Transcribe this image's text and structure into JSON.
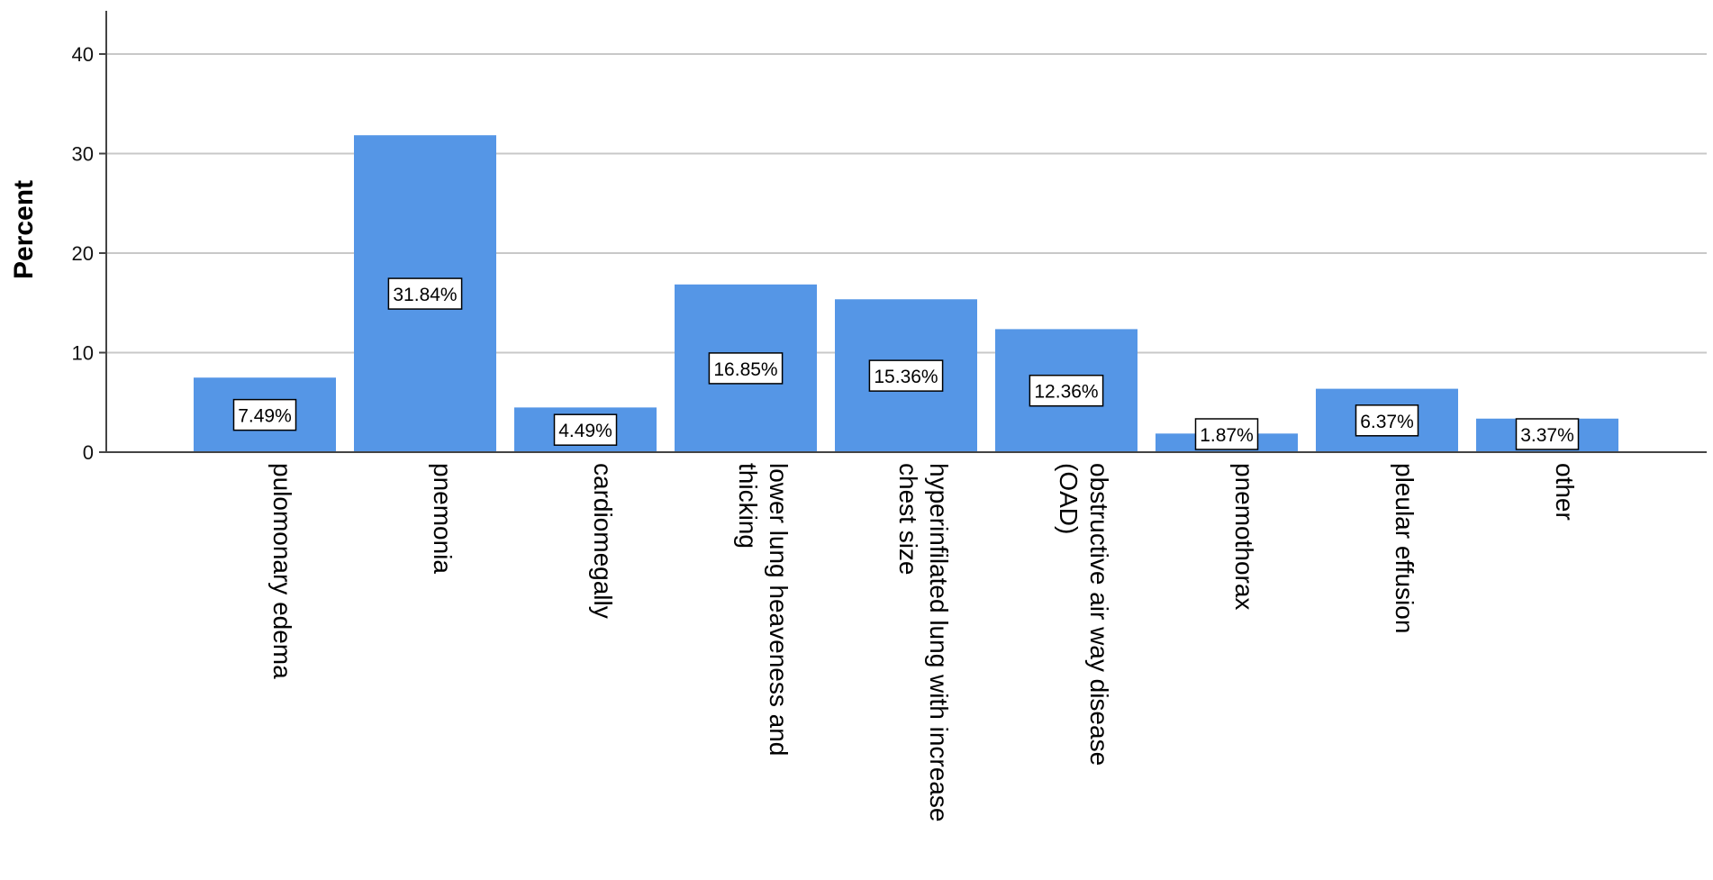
{
  "chart_data": {
    "type": "bar",
    "ylabel": "Percent",
    "xlabel": "",
    "ylim": [
      0,
      44
    ],
    "yticks": [
      0,
      10,
      20,
      30,
      40
    ],
    "grid": true,
    "bar_color": "#5596e6",
    "categories": [
      [
        "pulomonary edema"
      ],
      [
        "pnemonia"
      ],
      [
        "cardiomegally"
      ],
      [
        "lower lung heaveness and",
        "thicking"
      ],
      [
        "hyperinfilated lung with increase",
        "chest size"
      ],
      [
        "obstructive air way disease",
        "(OAD)"
      ],
      [
        "pnemothorax"
      ],
      [
        "pleular effusion"
      ],
      [
        "other"
      ]
    ],
    "values": [
      7.49,
      31.84,
      4.49,
      16.85,
      15.36,
      12.36,
      1.87,
      6.37,
      3.37
    ],
    "data_labels": [
      "7.49%",
      "31.84%",
      "4.49%",
      "16.85%",
      "15.36%",
      "12.36%",
      "1.87%",
      "6.37%",
      "3.37%"
    ]
  }
}
